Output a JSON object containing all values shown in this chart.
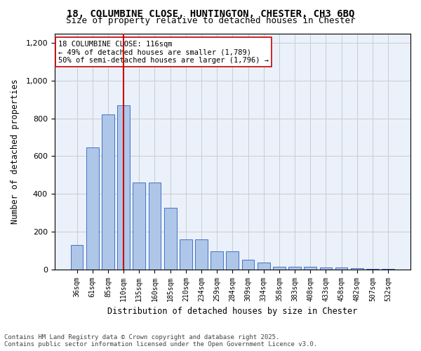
{
  "title_line1": "18, COLUMBINE CLOSE, HUNTINGTON, CHESTER, CH3 6BQ",
  "title_line2": "Size of property relative to detached houses in Chester",
  "xlabel": "Distribution of detached houses by size in Chester",
  "ylabel": "Number of detached properties",
  "footnote_line1": "Contains HM Land Registry data © Crown copyright and database right 2025.",
  "footnote_line2": "Contains public sector information licensed under the Open Government Licence v3.0.",
  "annotation_line1": "18 COLUMBINE CLOSE: 116sqm",
  "annotation_line2": "← 49% of detached houses are smaller (1,789)",
  "annotation_line3": "50% of semi-detached houses are larger (1,796) →",
  "bar_color": "#aec6e8",
  "bar_edge_color": "#4472c4",
  "grid_color": "#cccccc",
  "bg_color": "#eaf1fb",
  "redline_color": "#cc0000",
  "redline_x": 110,
  "categories": [
    "36sqm",
    "61sqm",
    "85sqm",
    "110sqm",
    "135sqm",
    "160sqm",
    "185sqm",
    "210sqm",
    "234sqm",
    "259sqm",
    "284sqm",
    "309sqm",
    "334sqm",
    "358sqm",
    "383sqm",
    "408sqm",
    "433sqm",
    "458sqm",
    "482sqm",
    "507sqm",
    "532sqm"
  ],
  "values": [
    130,
    645,
    820,
    870,
    460,
    460,
    325,
    160,
    160,
    95,
    95,
    50,
    35,
    15,
    15,
    15,
    10,
    10,
    5,
    2,
    2
  ],
  "ylim": [
    0,
    1250
  ],
  "yticks": [
    0,
    200,
    400,
    600,
    800,
    1000,
    1200
  ]
}
